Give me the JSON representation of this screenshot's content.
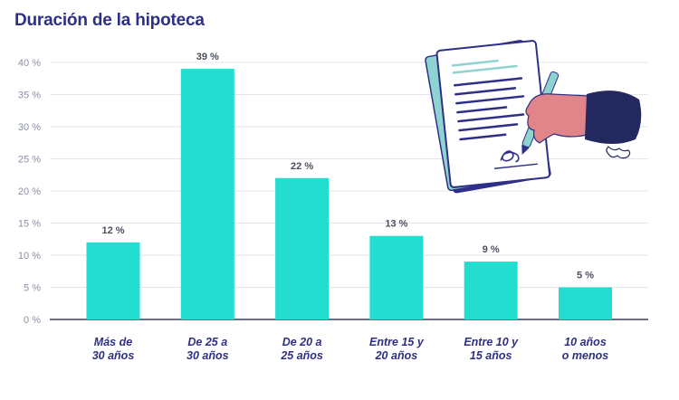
{
  "chart_data": {
    "type": "bar",
    "title": "Duración de la hipoteca",
    "categories": [
      [
        "Más de",
        "30 años"
      ],
      [
        "De 25 a",
        "30 años"
      ],
      [
        "De 20 a",
        "25 años"
      ],
      [
        "Entre 15 y",
        "20 años"
      ],
      [
        "Entre 10 y",
        "15 años"
      ],
      [
        "10 años",
        "o menos"
      ]
    ],
    "values": [
      12,
      39,
      22,
      13,
      9,
      5
    ],
    "value_labels": [
      "12 %",
      "39 %",
      "22 %",
      "13 %",
      "9 %",
      "5 %"
    ],
    "yticks": [
      0,
      5,
      10,
      15,
      20,
      25,
      30,
      35,
      40
    ],
    "ytick_labels": [
      "0 %",
      "5 %",
      "10 %",
      "15 %",
      "20 %",
      "25 %",
      "30 %",
      "35 %",
      "40 %"
    ],
    "ylim": [
      0,
      40
    ],
    "grid": true,
    "colors": {
      "bar": "#22ddd0",
      "axis": "#6b6f7d",
      "grid": "#e3e5ea"
    }
  },
  "illustration": {
    "icon": "contract-signing-icon",
    "colors": {
      "paper": "#ffffff",
      "paper_back": "#8fd3d0",
      "paper_shadow": "#2e2f86",
      "lines": "#2e2f86",
      "accent_lines": "#22ddd0",
      "hand": "#e0868a",
      "sleeve": "#23285e",
      "pen": "#8fd3d0"
    }
  }
}
